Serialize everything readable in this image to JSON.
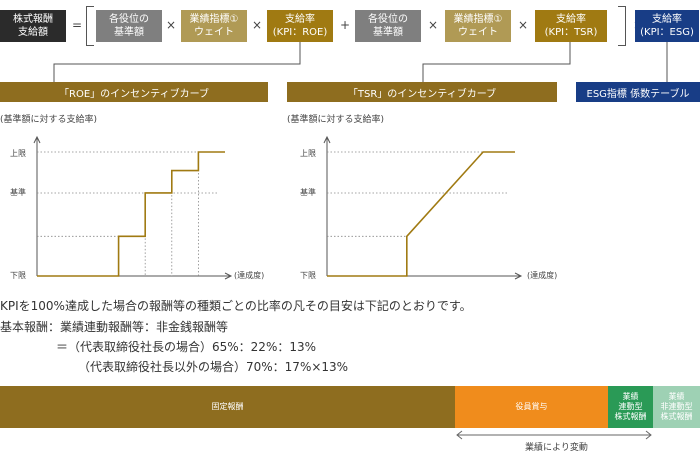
{
  "formula": {
    "stock_label": "株式報酬\n支給額",
    "eq": "=",
    "items": [
      {
        "label": "各役位の\n基準額",
        "color": "#7f7f7f"
      },
      {
        "label": "業績指標①\nウェイト",
        "color": "#b09a55"
      },
      {
        "label": "支給率\n(KPI：ROE)",
        "color": "#a07a12"
      },
      {
        "label": "各役位の\n基準額",
        "color": "#7f7f7f"
      },
      {
        "label": "業績指標①\nウェイト",
        "color": "#b09a55"
      },
      {
        "label": "支給率\n(KPI：TSR)",
        "color": "#a07a12"
      },
      {
        "label": "支給率\n(KPI：ESG)",
        "color": "#183d86"
      }
    ],
    "times": "×",
    "plus": "+"
  },
  "tags": {
    "roe": "「ROE」のインセンティブカーブ",
    "tsr": "「TSR」のインセンティブカーブ",
    "esg": "ESG指標 係数テーブル"
  },
  "charts": {
    "y_caption": "(基準額に対する支給率)",
    "y_upper": "上限",
    "y_base": "基準",
    "y_lower": "下限",
    "x_caption": "(達成度)"
  },
  "chart_data": [
    {
      "type": "line",
      "title": "「ROE」のインセンティブカーブ",
      "ylabel": "(基準額に対する支給率)",
      "xlabel": "(達成度)",
      "y_ticks": [
        "下限",
        "基準",
        "上限"
      ],
      "series": [
        {
          "x": [
            0,
            0.46,
            0.46,
            0.61,
            0.61,
            0.76,
            0.76,
            0.91,
            0.91,
            1.06
          ],
          "y": [
            0,
            0,
            0.32,
            0.32,
            0.67,
            0.67,
            0.85,
            0.85,
            1.0,
            1.0
          ]
        }
      ]
    },
    {
      "type": "line",
      "title": "「TSR」のインセンティブカーブ",
      "ylabel": "(基準額に対する支給率)",
      "xlabel": "(達成度)",
      "y_ticks": [
        "下限",
        "基準",
        "上限"
      ],
      "series": [
        {
          "x": [
            0,
            0.45,
            0.45,
            0.88,
            1.06
          ],
          "y": [
            0,
            0,
            0.32,
            1.0,
            1.0
          ]
        }
      ]
    }
  ],
  "notes": {
    "line1": "KPIを100%達成した場合の報酬等の種類ごとの比率の凡その目安は下記のとおりです。",
    "line2": "基本報酬：業績連動報酬等：非金銭報酬等",
    "line3": "＝（代表取締役社長の場合）65%：22%：13%",
    "line4": "（代表取締役社長以外の場合）70%：17%×13%"
  },
  "bar": {
    "segments": [
      {
        "label": "固定報酬",
        "color": "#8e6d1f"
      },
      {
        "label": "役員賞与",
        "color": "#f08c1c"
      },
      {
        "label": "業績\n連動型\n株式報酬",
        "color": "#2a9a56"
      },
      {
        "label": "業績\n非連動型\n株式報酬",
        "color": "#9ed1b4"
      }
    ],
    "range_label": "業績により変動"
  }
}
